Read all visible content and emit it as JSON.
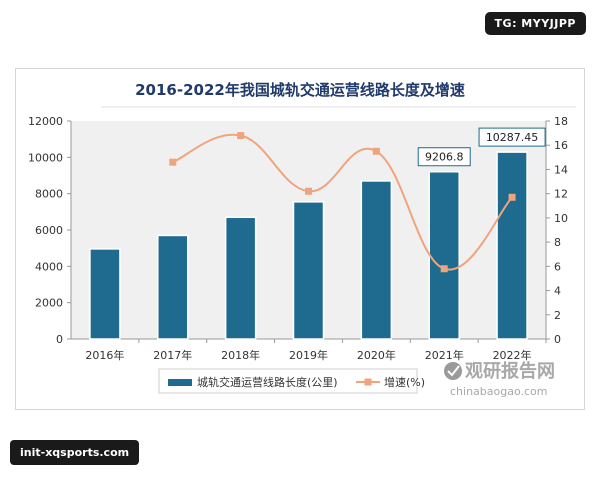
{
  "overlay": {
    "top_tag": "TG: MYYJJPP",
    "bottom_tag": "init-xqsports.com"
  },
  "watermark": {
    "brand": "观研报告网",
    "url": "chinabaogao.com"
  },
  "chart_data": {
    "type": "bar",
    "title": "2016-2022年我国城轨交通运营线路长度及增速",
    "categories": [
      "2016年",
      "2017年",
      "2018年",
      "2019年",
      "2020年",
      "2021年",
      "2022年"
    ],
    "series": [
      {
        "name": "城轨交通运营线路长度(公里)",
        "type": "bar",
        "axis": "left",
        "values": [
          4960,
          5700,
          6700,
          7550,
          8700,
          9206.8,
          10287.45
        ]
      },
      {
        "name": "增速(%)",
        "type": "line",
        "axis": "right",
        "values": [
          null,
          14.6,
          16.8,
          12.2,
          15.5,
          5.8,
          11.7
        ]
      }
    ],
    "data_labels": [
      "9206.8",
      "10287.45"
    ],
    "y_left": {
      "ylim": [
        0,
        12000
      ],
      "ticks": [
        "0",
        "2000",
        "4000",
        "6000",
        "8000",
        "10000",
        "12000"
      ]
    },
    "y_right": {
      "ylim": [
        0,
        18
      ],
      "ticks": [
        "0",
        "2",
        "4",
        "6",
        "8",
        "10",
        "12",
        "14",
        "16",
        "18"
      ]
    },
    "grid": false,
    "legend_position": "bottom",
    "colors": {
      "bar": "#1e6b8f",
      "line": "#f0a47e",
      "plot_bg": "#f0f0f0"
    }
  }
}
